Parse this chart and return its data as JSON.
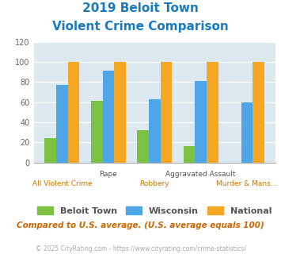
{
  "title_line1": "2019 Beloit Town",
  "title_line2": "Violent Crime Comparison",
  "title_color": "#1a7abf",
  "categories": [
    "All Violent Crime",
    "Rape",
    "Robbery",
    "Aggravated Assault",
    "Murder & Mans..."
  ],
  "x_top_labels": [
    "",
    "Rape",
    "",
    "Aggravated Assault",
    ""
  ],
  "x_bottom_labels": [
    "All Violent Crime",
    "",
    "Robbery",
    "",
    "Murder & Mans..."
  ],
  "beloit_town": [
    24,
    61,
    32,
    16,
    0
  ],
  "wisconsin": [
    77,
    91,
    63,
    81,
    60
  ],
  "national": [
    100,
    100,
    100,
    100,
    100
  ],
  "bar_colors": {
    "beloit_town": "#7dc142",
    "wisconsin": "#4da6e8",
    "national": "#f5a623"
  },
  "ylim": [
    0,
    120
  ],
  "yticks": [
    0,
    20,
    40,
    60,
    80,
    100,
    120
  ],
  "plot_bg": "#dce9f0",
  "legend_labels": [
    "Beloit Town",
    "Wisconsin",
    "National"
  ],
  "footer_text": "Compared to U.S. average. (U.S. average equals 100)",
  "footer_color": "#cc6600",
  "credit_text": "© 2025 CityRating.com - https://www.cityrating.com/crime-statistics/",
  "credit_color": "#aaaaaa",
  "credit_link_color": "#4da6e8"
}
